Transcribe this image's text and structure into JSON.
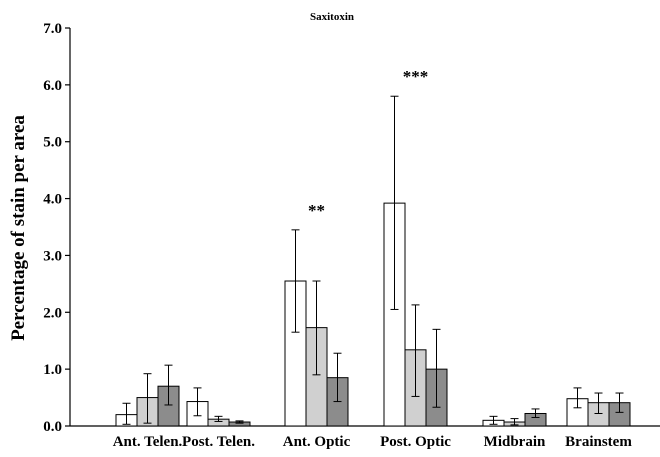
{
  "chart_data": {
    "type": "bar",
    "title": "Saxitoxin",
    "xlabel": "",
    "ylabel": "Percentage of stain per area",
    "ylim": [
      0,
      7
    ],
    "yticks": [
      "0.0",
      "1.0",
      "2.0",
      "3.0",
      "4.0",
      "5.0",
      "6.0",
      "7.0"
    ],
    "grid": false,
    "legend": "none",
    "categories": [
      "Ant. Telen.",
      "Post. Telen.",
      "Ant. Optic",
      "Post. Optic",
      "Midbrain",
      "Brainstem"
    ],
    "series": [
      {
        "color": "#ffffff",
        "values": [
          0.2,
          0.43,
          2.55,
          3.92,
          0.1,
          0.48
        ],
        "err_low": [
          0.03,
          0.18,
          1.65,
          2.05,
          0.03,
          0.32
        ],
        "err_high": [
          0.4,
          0.67,
          3.45,
          5.8,
          0.17,
          0.67
        ]
      },
      {
        "color": "#d0d0d0",
        "values": [
          0.5,
          0.12,
          1.73,
          1.34,
          0.07,
          0.41
        ],
        "err_low": [
          0.05,
          0.08,
          0.9,
          0.52,
          0.02,
          0.22
        ],
        "err_high": [
          0.92,
          0.17,
          2.55,
          2.13,
          0.13,
          0.58
        ]
      },
      {
        "color": "#8c8c8c",
        "values": [
          0.7,
          0.07,
          0.85,
          1.0,
          0.22,
          0.41
        ],
        "err_low": [
          0.37,
          0.05,
          0.43,
          0.33,
          0.15,
          0.24
        ],
        "err_high": [
          1.07,
          0.09,
          1.28,
          1.7,
          0.3,
          0.58
        ]
      }
    ],
    "annotations": [
      {
        "category": "Ant. Optic",
        "text": "**"
      },
      {
        "category": "Post. Optic",
        "text": "***"
      }
    ]
  }
}
